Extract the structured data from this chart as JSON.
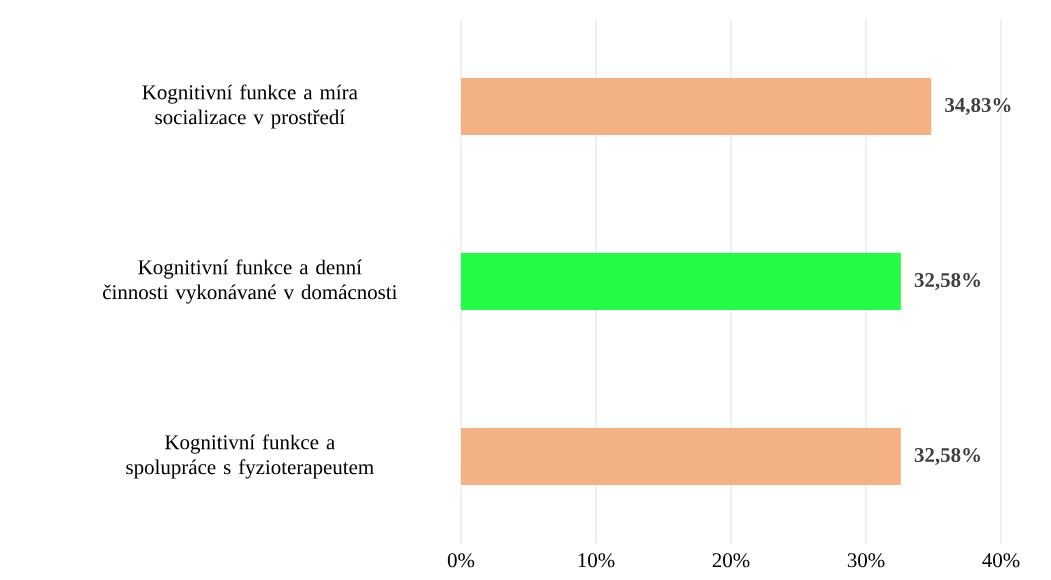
{
  "chart_data": {
    "type": "bar",
    "orientation": "horizontal",
    "categories": [
      "Kognitivní funkce a míra socializace v prostředí",
      "Kognitivní funkce a denní činnosti vykonávané v domácnosti",
      "Kognitivní funkce a spolupráce s fyzioterapeutem"
    ],
    "values": [
      34.83,
      32.58,
      32.58
    ],
    "colors": [
      "#f4b183",
      "#22fc44",
      "#f4b183"
    ],
    "value_labels": [
      "34,83%",
      "32,58%",
      "32,58%"
    ],
    "xlim": [
      0,
      40
    ],
    "xticks": [
      {
        "value": 0,
        "label": "0%"
      },
      {
        "value": 10,
        "label": "10%"
      },
      {
        "value": 20,
        "label": "20%"
      },
      {
        "value": 30,
        "label": "30%"
      },
      {
        "value": 40,
        "label": "40%"
      }
    ],
    "grid": "x"
  }
}
